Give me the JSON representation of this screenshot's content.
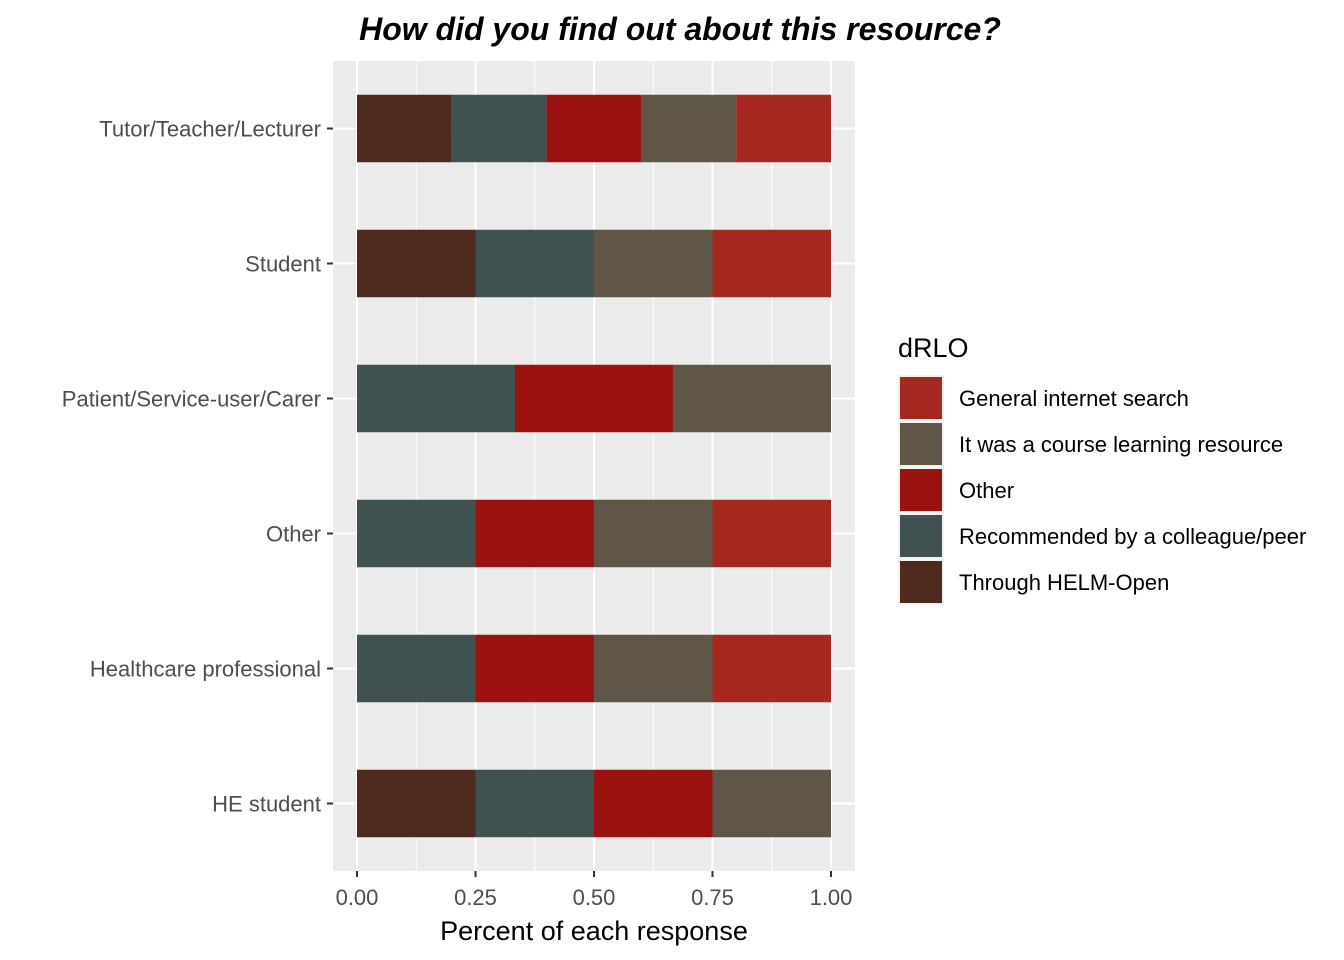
{
  "chart_data": {
    "type": "bar",
    "orientation": "horizontal",
    "stacked": true,
    "title": "How did you find out about this resource?",
    "xlabel": "Percent of each response",
    "ylabel": "",
    "xlim": [
      0,
      1
    ],
    "x_ticks": [
      "0.00",
      "0.25",
      "0.50",
      "0.75",
      "1.00"
    ],
    "x_tick_values": [
      0,
      0.25,
      0.5,
      0.75,
      1.0
    ],
    "grid": true,
    "legend_position": "right",
    "legend_title": "dRLO",
    "categories": [
      "Tutor/Teacher/Lecturer",
      "Student",
      "Patient/Service-user/Carer",
      "Other",
      "Healthcare professional",
      "HE student"
    ],
    "series": [
      {
        "name": "Through HELM-Open",
        "color": "#4E2A1E",
        "values": [
          0.2,
          0.25,
          0,
          0,
          0,
          0.25
        ]
      },
      {
        "name": "Recommended by a colleague/peer",
        "color": "#3F5151",
        "values": [
          0.2,
          0.25,
          0.3333,
          0.25,
          0.25,
          0.25
        ]
      },
      {
        "name": "Other",
        "color": "#9A1310",
        "values": [
          0.2,
          0,
          0.3333,
          0.25,
          0.25,
          0.25
        ]
      },
      {
        "name": "It was a course learning resource",
        "color": "#5F5647",
        "values": [
          0.2,
          0.25,
          0.3334,
          0.25,
          0.25,
          0.25
        ]
      },
      {
        "name": "General internet search",
        "color": "#A42820",
        "values": [
          0.2,
          0.25,
          0,
          0.25,
          0.25,
          0
        ]
      }
    ],
    "legend_order": [
      "General internet search",
      "It was a course learning resource",
      "Other",
      "Recommended by a colleague/peer",
      "Through HELM-Open"
    ]
  }
}
